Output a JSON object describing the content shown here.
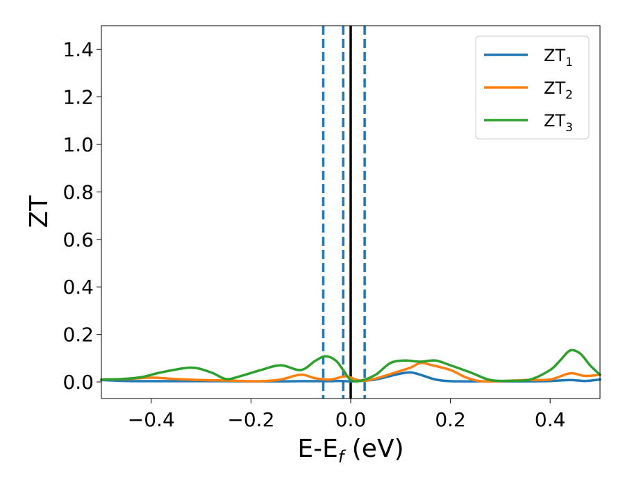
{
  "chart_data": {
    "type": "line",
    "xlabel": "E-E",
    "xlabel_sub": "f",
    "xlabel_unit": " (eV)",
    "ylabel": "ZT",
    "xlim": [
      -0.5,
      0.5
    ],
    "ylim": [
      -0.07,
      1.5
    ],
    "xticks": [
      -0.4,
      -0.2,
      0.0,
      0.2,
      0.4
    ],
    "xtick_labels": [
      "−0.4",
      "−0.2",
      "0.0",
      "0.2",
      "0.4"
    ],
    "yticks": [
      0.0,
      0.2,
      0.4,
      0.6,
      0.8,
      1.0,
      1.2,
      1.4
    ],
    "ytick_labels": [
      "0.0",
      "0.2",
      "0.4",
      "0.6",
      "0.8",
      "1.0",
      "1.2",
      "1.4"
    ],
    "legend_position": "top-right",
    "vlines": [
      {
        "x": -0.055,
        "style": "dashed",
        "color": "#1f77b4"
      },
      {
        "x": -0.015,
        "style": "dashed",
        "color": "#1f77b4"
      },
      {
        "x": 0.0,
        "style": "solid",
        "color": "#000000"
      },
      {
        "x": 0.028,
        "style": "dashed",
        "color": "#1f77b4"
      }
    ],
    "series": [
      {
        "name": "ZT",
        "name_sub": "1",
        "color": "#1f77b4",
        "points": [
          [
            -0.5,
            0.008
          ],
          [
            -0.45,
            0.004
          ],
          [
            -0.4,
            0.003
          ],
          [
            -0.35,
            0.003
          ],
          [
            -0.3,
            0.003
          ],
          [
            -0.25,
            0.003
          ],
          [
            -0.2,
            0.002
          ],
          [
            -0.15,
            0.002
          ],
          [
            -0.1,
            0.003
          ],
          [
            -0.05,
            0.003
          ],
          [
            -0.02,
            0.004
          ],
          [
            0.0,
            0.002
          ],
          [
            0.02,
            0.004
          ],
          [
            0.05,
            0.01
          ],
          [
            0.08,
            0.025
          ],
          [
            0.1,
            0.035
          ],
          [
            0.12,
            0.04
          ],
          [
            0.14,
            0.03
          ],
          [
            0.17,
            0.01
          ],
          [
            0.2,
            0.003
          ],
          [
            0.25,
            0.002
          ],
          [
            0.3,
            0.002
          ],
          [
            0.35,
            0.002
          ],
          [
            0.4,
            0.004
          ],
          [
            0.44,
            0.008
          ],
          [
            0.47,
            0.004
          ],
          [
            0.5,
            0.01
          ]
        ]
      },
      {
        "name": "ZT",
        "name_sub": "2",
        "color": "#ff7f0e",
        "points": [
          [
            -0.5,
            0.01
          ],
          [
            -0.45,
            0.012
          ],
          [
            -0.4,
            0.018
          ],
          [
            -0.35,
            0.012
          ],
          [
            -0.3,
            0.008
          ],
          [
            -0.25,
            0.006
          ],
          [
            -0.2,
            0.003
          ],
          [
            -0.17,
            0.004
          ],
          [
            -0.14,
            0.01
          ],
          [
            -0.1,
            0.03
          ],
          [
            -0.07,
            0.015
          ],
          [
            -0.04,
            0.01
          ],
          [
            -0.01,
            0.024
          ],
          [
            0.01,
            0.01
          ],
          [
            0.03,
            0.005
          ],
          [
            0.06,
            0.02
          ],
          [
            0.09,
            0.04
          ],
          [
            0.12,
            0.06
          ],
          [
            0.14,
            0.08
          ],
          [
            0.16,
            0.072
          ],
          [
            0.2,
            0.05
          ],
          [
            0.23,
            0.02
          ],
          [
            0.26,
            0.003
          ],
          [
            0.3,
            0.003
          ],
          [
            0.35,
            0.008
          ],
          [
            0.4,
            0.01
          ],
          [
            0.44,
            0.036
          ],
          [
            0.47,
            0.025
          ],
          [
            0.5,
            0.03
          ]
        ]
      },
      {
        "name": "ZT",
        "name_sub": "3",
        "color": "#2ca02c",
        "points": [
          [
            -0.5,
            0.01
          ],
          [
            -0.46,
            0.012
          ],
          [
            -0.42,
            0.02
          ],
          [
            -0.38,
            0.04
          ],
          [
            -0.32,
            0.06
          ],
          [
            -0.28,
            0.04
          ],
          [
            -0.25,
            0.012
          ],
          [
            -0.22,
            0.025
          ],
          [
            -0.18,
            0.05
          ],
          [
            -0.14,
            0.07
          ],
          [
            -0.1,
            0.05
          ],
          [
            -0.07,
            0.09
          ],
          [
            -0.05,
            0.108
          ],
          [
            -0.03,
            0.09
          ],
          [
            -0.015,
            0.05
          ],
          [
            0.0,
            0.008
          ],
          [
            0.02,
            0.005
          ],
          [
            0.05,
            0.03
          ],
          [
            0.08,
            0.08
          ],
          [
            0.11,
            0.09
          ],
          [
            0.14,
            0.085
          ],
          [
            0.17,
            0.09
          ],
          [
            0.2,
            0.07
          ],
          [
            0.24,
            0.04
          ],
          [
            0.28,
            0.008
          ],
          [
            0.32,
            0.005
          ],
          [
            0.36,
            0.01
          ],
          [
            0.4,
            0.05
          ],
          [
            0.42,
            0.09
          ],
          [
            0.44,
            0.132
          ],
          [
            0.46,
            0.12
          ],
          [
            0.48,
            0.07
          ],
          [
            0.5,
            0.03
          ]
        ]
      }
    ]
  }
}
